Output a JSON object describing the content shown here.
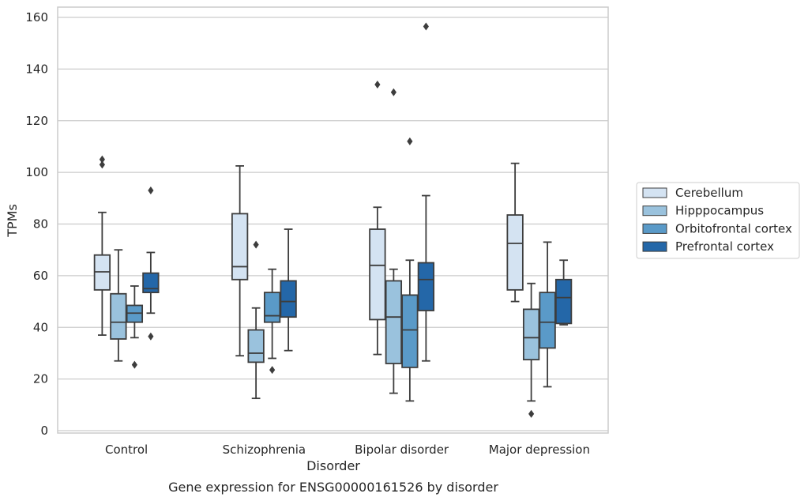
{
  "chart_data": {
    "type": "box",
    "title": "",
    "caption": "Gene expression for ENSG00000161526 by disorder",
    "xlabel": "Disorder",
    "ylabel": "TPMs",
    "ylim": [
      0,
      160
    ],
    "yticks": [
      0,
      20,
      40,
      60,
      80,
      100,
      120,
      140,
      160
    ],
    "grid": true,
    "legend_placement": "center-right outside",
    "categories": [
      "Control",
      "Schizophrenia",
      "Bipolar disorder",
      "Major depression"
    ],
    "series": [
      {
        "name": "Cerebellum",
        "color": "#d4e3f2",
        "boxes": [
          {
            "whisker_low": 37,
            "q1": 54.5,
            "median": 61.5,
            "q3": 68,
            "whisker_high": 84.5,
            "outliers": [
              103,
              105
            ]
          },
          {
            "whisker_low": 29,
            "q1": 58.5,
            "median": 63.5,
            "q3": 84,
            "whisker_high": 102.5,
            "outliers": []
          },
          {
            "whisker_low": 29.5,
            "q1": 43,
            "median": 64,
            "q3": 78,
            "whisker_high": 86.5,
            "outliers": [
              134
            ]
          },
          {
            "whisker_low": 50,
            "q1": 54.5,
            "median": 72.5,
            "q3": 83.5,
            "whisker_high": 103.5,
            "outliers": []
          }
        ]
      },
      {
        "name": "Hipppocampus",
        "color": "#9ac2dd",
        "boxes": [
          {
            "whisker_low": 27,
            "q1": 35.5,
            "median": 42,
            "q3": 53,
            "whisker_high": 70,
            "outliers": []
          },
          {
            "whisker_low": 12.5,
            "q1": 26.5,
            "median": 30,
            "q3": 39,
            "whisker_high": 47.5,
            "outliers": [
              72
            ]
          },
          {
            "whisker_low": 14.5,
            "q1": 26,
            "median": 44,
            "q3": 58,
            "whisker_high": 62.5,
            "outliers": [
              131
            ]
          },
          {
            "whisker_low": 11.5,
            "q1": 27.5,
            "median": 36,
            "q3": 47,
            "whisker_high": 57,
            "outliers": [
              6.5
            ]
          }
        ]
      },
      {
        "name": "Orbitofrontal cortex",
        "color": "#5a9ac8",
        "boxes": [
          {
            "whisker_low": 36,
            "q1": 42,
            "median": 45.5,
            "q3": 48.5,
            "whisker_high": 56,
            "outliers": [
              25.5
            ]
          },
          {
            "whisker_low": 28,
            "q1": 42,
            "median": 44.5,
            "q3": 53.5,
            "whisker_high": 62.5,
            "outliers": [
              23.5
            ]
          },
          {
            "whisker_low": 11.5,
            "q1": 24.5,
            "median": 39,
            "q3": 52.5,
            "whisker_high": 66,
            "outliers": [
              112
            ]
          },
          {
            "whisker_low": 17,
            "q1": 32,
            "median": 42,
            "q3": 53.5,
            "whisker_high": 73,
            "outliers": []
          }
        ]
      },
      {
        "name": "Prefrontal cortex",
        "color": "#2467a8",
        "boxes": [
          {
            "whisker_low": 45.5,
            "q1": 53.5,
            "median": 55,
            "q3": 61,
            "whisker_high": 69,
            "outliers": [
              36.5,
              93
            ]
          },
          {
            "whisker_low": 31,
            "q1": 44,
            "median": 50,
            "q3": 58,
            "whisker_high": 78,
            "outliers": []
          },
          {
            "whisker_low": 27,
            "q1": 46.5,
            "median": 58.5,
            "q3": 65,
            "whisker_high": 91,
            "outliers": [
              156.5
            ]
          },
          {
            "whisker_low": 41,
            "q1": 41.5,
            "median": 51.5,
            "q3": 58.5,
            "whisker_high": 66,
            "outliers": []
          }
        ]
      }
    ]
  }
}
